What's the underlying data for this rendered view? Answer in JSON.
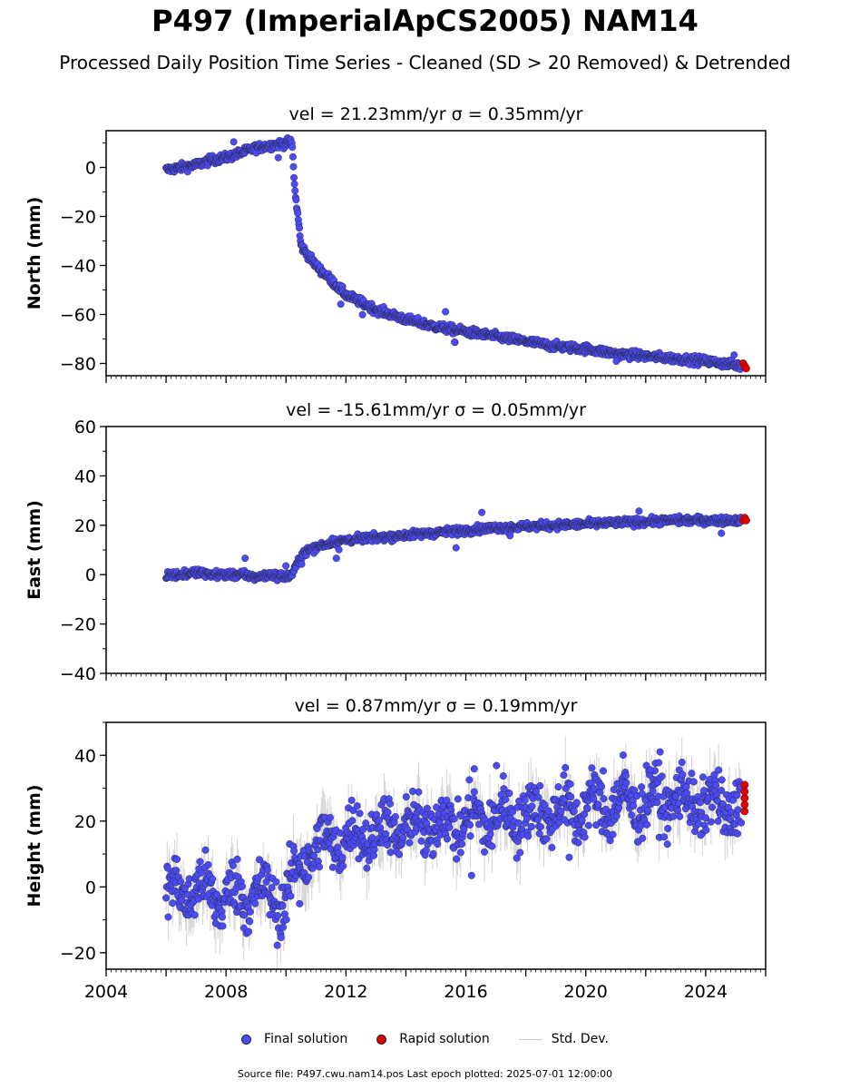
{
  "figure": {
    "title": "P497 (ImperialApCS2005) NAM14",
    "subtitle": "Processed Daily Position Time Series - Cleaned (SD > 20 Removed) & Detrended",
    "footer": "Source file: P497.cwu.nam14.pos  Last epoch plotted: 2025-07-01 12:00:00"
  },
  "legend": {
    "final": "Final solution",
    "rapid": "Rapid solution",
    "stddev": "Std. Dev."
  },
  "colors": {
    "final": "#4b4bf5",
    "rapid": "#e00000",
    "stddev": "#b4b4b4",
    "edge": "#222222"
  },
  "chart_data": [
    {
      "type": "scatter",
      "title": "vel = 21.23mm/yr   σ = 0.35mm/yr",
      "ylabel": "North (mm)",
      "xlim": [
        2004,
        2026
      ],
      "ylim": [
        -85,
        15
      ],
      "yticks": [
        0,
        -20,
        -40,
        -60,
        -80
      ],
      "xticks": [
        2004,
        2008,
        2012,
        2016,
        2020,
        2024
      ],
      "series": [
        {
          "name": "Final solution",
          "x": [
            2006.0,
            2006.5,
            2007.0,
            2007.5,
            2008.0,
            2008.5,
            2009.0,
            2009.5,
            2010.0,
            2010.2,
            2010.3,
            2010.4,
            2010.5,
            2011.0,
            2011.5,
            2012.0,
            2013.0,
            2014.0,
            2015.0,
            2016.0,
            2017.0,
            2018.0,
            2019.0,
            2020.0,
            2021.0,
            2022.0,
            2023.0,
            2024.0,
            2025.2
          ],
          "y": [
            -1,
            0,
            1,
            3,
            4,
            6,
            8,
            9,
            10,
            10,
            -10,
            -20,
            -32,
            -40,
            -46,
            -52,
            -58,
            -62,
            -65,
            -67,
            -69,
            -71,
            -73,
            -74,
            -76,
            -77,
            -78,
            -79,
            -81
          ]
        },
        {
          "name": "Rapid solution",
          "x": [
            2025.25,
            2025.3,
            2025.35
          ],
          "y": [
            -80,
            -81,
            -82
          ]
        }
      ]
    },
    {
      "type": "scatter",
      "title": "vel = -15.61mm/yr   σ = 0.05mm/yr",
      "ylabel": "East (mm)",
      "xlim": [
        2004,
        2026
      ],
      "ylim": [
        -40,
        60
      ],
      "yticks": [
        60,
        40,
        20,
        0,
        -20,
        -40
      ],
      "xticks": [
        2004,
        2008,
        2012,
        2016,
        2020,
        2024
      ],
      "series": [
        {
          "name": "Final solution",
          "x": [
            2006.0,
            2006.5,
            2007.0,
            2007.5,
            2008.0,
            2008.5,
            2009.0,
            2009.5,
            2010.0,
            2010.2,
            2010.4,
            2010.6,
            2011.0,
            2011.5,
            2012.0,
            2013.0,
            2014.0,
            2015.0,
            2016.0,
            2017.0,
            2018.0,
            2019.0,
            2020.0,
            2021.0,
            2022.0,
            2023.0,
            2024.0,
            2025.2
          ],
          "y": [
            0,
            0,
            1,
            0,
            0,
            0,
            -1,
            0,
            -1,
            0,
            5,
            9,
            11,
            13,
            14,
            15,
            16,
            17,
            18,
            19,
            19.5,
            20,
            20.5,
            21,
            21.5,
            22,
            22,
            22
          ]
        },
        {
          "name": "Rapid solution",
          "x": [
            2025.25,
            2025.3,
            2025.35
          ],
          "y": [
            22,
            23,
            22
          ]
        }
      ]
    },
    {
      "type": "scatter",
      "title": "vel = 0.87mm/yr   σ = 0.19mm/yr",
      "ylabel": "Height (mm)",
      "xlim": [
        2004,
        2026
      ],
      "ylim": [
        -25,
        50
      ],
      "yticks": [
        40,
        20,
        0,
        -20
      ],
      "xticks": [
        2004,
        2008,
        2012,
        2016,
        2020,
        2024
      ],
      "xticklabels": [
        "2004",
        "2008",
        "2012",
        "2016",
        "2020",
        "2024"
      ],
      "series": [
        {
          "name": "Final solution",
          "x": [
            2006.0,
            2007.0,
            2008.0,
            2009.0,
            2010.0,
            2010.5,
            2011.0,
            2012.0,
            2013.0,
            2014.0,
            2015.0,
            2016.0,
            2017.0,
            2018.0,
            2019.0,
            2020.0,
            2021.0,
            2022.0,
            2023.0,
            2024.0,
            2025.2
          ],
          "y": [
            -2,
            -1,
            -3,
            -2,
            -4,
            8,
            12,
            15,
            17,
            18,
            19,
            20,
            21,
            22,
            23,
            24,
            25,
            26,
            27,
            25,
            24
          ]
        },
        {
          "name": "Rapid solution",
          "x": [
            2025.3,
            2025.3,
            2025.3,
            2025.3,
            2025.3
          ],
          "y": [
            23,
            25,
            27,
            29,
            31
          ]
        }
      ]
    }
  ]
}
